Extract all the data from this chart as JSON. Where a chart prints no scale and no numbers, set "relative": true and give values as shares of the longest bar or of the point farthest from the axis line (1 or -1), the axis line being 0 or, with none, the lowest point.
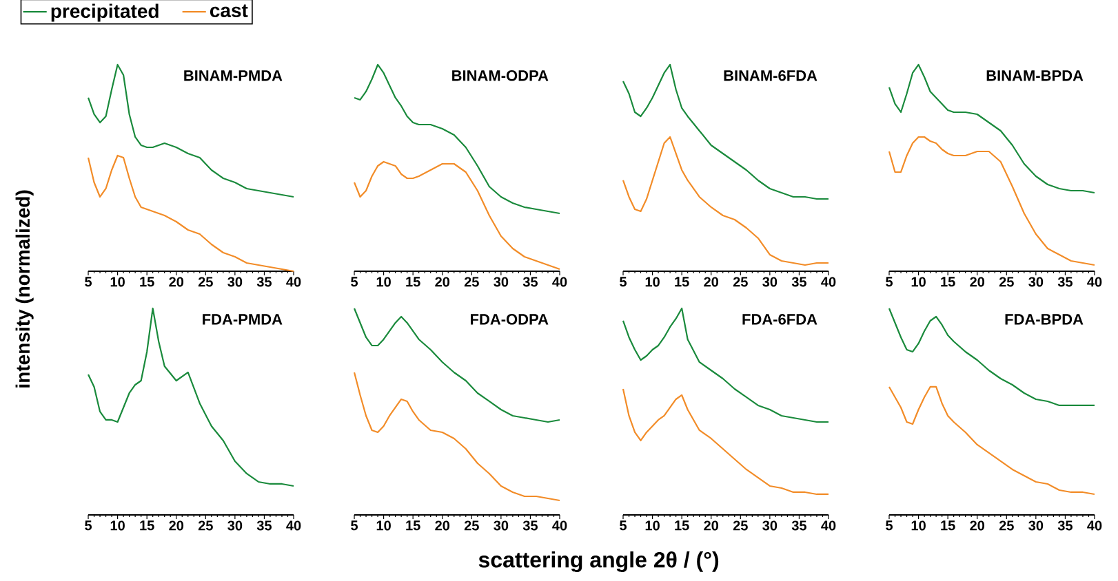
{
  "chart_data": [
    {
      "type": "line",
      "title": "BINAM-PMDA",
      "relative": true,
      "xlim": [
        5,
        40
      ],
      "xticks": [
        5,
        10,
        15,
        20,
        25,
        30,
        35,
        40
      ],
      "tick_labels": "x",
      "legend": "top left",
      "ylabel": "intensity (normalized)",
      "x": [
        5,
        6,
        7,
        8,
        9,
        10,
        11,
        12,
        13,
        14,
        15,
        16,
        18,
        20,
        22,
        24,
        26,
        28,
        30,
        32,
        34,
        36,
        38,
        40
      ],
      "series": [
        {
          "name": "precipitated",
          "color": "#1a8a3c",
          "values": [
            0.84,
            0.76,
            0.72,
            0.75,
            0.88,
            1.0,
            0.95,
            0.76,
            0.65,
            0.61,
            0.6,
            0.6,
            0.62,
            0.6,
            0.57,
            0.55,
            0.49,
            0.45,
            0.43,
            0.4,
            0.39,
            0.38,
            0.37,
            0.36
          ]
        },
        {
          "name": "cast",
          "color": "#f28c28",
          "values": [
            0.55,
            0.43,
            0.36,
            0.4,
            0.49,
            0.56,
            0.55,
            0.45,
            0.36,
            0.31,
            0.3,
            0.29,
            0.27,
            0.24,
            0.2,
            0.18,
            0.13,
            0.09,
            0.07,
            0.04,
            0.03,
            0.02,
            0.01,
            0.0
          ]
        }
      ]
    },
    {
      "type": "line",
      "title": "BINAM-ODPA",
      "relative": true,
      "xlim": [
        5,
        40
      ],
      "xticks": [
        5,
        10,
        15,
        20,
        25,
        30,
        35,
        40
      ],
      "tick_labels": "x",
      "x": [
        5,
        6,
        7,
        8,
        9,
        10,
        11,
        12,
        13,
        14,
        15,
        16,
        18,
        20,
        22,
        24,
        26,
        28,
        30,
        32,
        34,
        36,
        38,
        40
      ],
      "series": [
        {
          "color": "#1a8a3c",
          "values": [
            0.84,
            0.83,
            0.87,
            0.93,
            1.0,
            0.96,
            0.9,
            0.84,
            0.8,
            0.75,
            0.72,
            0.71,
            0.71,
            0.69,
            0.66,
            0.6,
            0.51,
            0.41,
            0.36,
            0.33,
            0.31,
            0.3,
            0.29,
            0.28
          ]
        },
        {
          "color": "#f28c28",
          "values": [
            0.43,
            0.36,
            0.39,
            0.46,
            0.51,
            0.53,
            0.52,
            0.51,
            0.47,
            0.45,
            0.45,
            0.46,
            0.49,
            0.52,
            0.52,
            0.48,
            0.39,
            0.27,
            0.17,
            0.11,
            0.07,
            0.05,
            0.03,
            0.01
          ]
        }
      ]
    },
    {
      "type": "line",
      "title": "BINAM-6FDA",
      "relative": true,
      "xlim": [
        5,
        40
      ],
      "xticks": [
        5,
        10,
        15,
        20,
        25,
        30,
        35,
        40
      ],
      "tick_labels": "x",
      "x": [
        5,
        6,
        7,
        8,
        9,
        10,
        11,
        12,
        13,
        14,
        15,
        16,
        18,
        20,
        22,
        24,
        26,
        28,
        30,
        32,
        34,
        36,
        38,
        40
      ],
      "series": [
        {
          "color": "#1a8a3c",
          "values": [
            0.92,
            0.86,
            0.77,
            0.75,
            0.79,
            0.84,
            0.9,
            0.96,
            1.0,
            0.88,
            0.79,
            0.75,
            0.68,
            0.61,
            0.57,
            0.53,
            0.49,
            0.44,
            0.4,
            0.38,
            0.36,
            0.36,
            0.35,
            0.35
          ]
        },
        {
          "color": "#f28c28",
          "values": [
            0.44,
            0.36,
            0.3,
            0.29,
            0.35,
            0.44,
            0.53,
            0.62,
            0.65,
            0.57,
            0.49,
            0.44,
            0.36,
            0.31,
            0.27,
            0.25,
            0.21,
            0.16,
            0.08,
            0.05,
            0.04,
            0.03,
            0.04,
            0.04
          ]
        }
      ]
    },
    {
      "type": "line",
      "title": "BINAM-BPDA",
      "relative": true,
      "xlim": [
        5,
        40
      ],
      "xticks": [
        5,
        10,
        15,
        20,
        25,
        30,
        35,
        40
      ],
      "tick_labels": "x",
      "x": [
        5,
        6,
        7,
        8,
        9,
        10,
        11,
        12,
        13,
        14,
        15,
        16,
        18,
        20,
        22,
        24,
        26,
        28,
        30,
        32,
        34,
        36,
        38,
        40
      ],
      "series": [
        {
          "color": "#1a8a3c",
          "values": [
            0.89,
            0.81,
            0.77,
            0.86,
            0.96,
            1.0,
            0.94,
            0.87,
            0.84,
            0.81,
            0.78,
            0.77,
            0.77,
            0.76,
            0.72,
            0.68,
            0.61,
            0.52,
            0.46,
            0.42,
            0.4,
            0.39,
            0.39,
            0.38
          ]
        },
        {
          "color": "#f28c28",
          "values": [
            0.58,
            0.48,
            0.48,
            0.56,
            0.62,
            0.65,
            0.65,
            0.63,
            0.62,
            0.59,
            0.57,
            0.56,
            0.56,
            0.58,
            0.58,
            0.53,
            0.41,
            0.28,
            0.18,
            0.11,
            0.08,
            0.05,
            0.04,
            0.03
          ]
        }
      ]
    },
    {
      "type": "line",
      "title": "FDA-PMDA",
      "relative": true,
      "xlim": [
        5,
        40
      ],
      "xticks": [
        5,
        10,
        15,
        20,
        25,
        30,
        35,
        40
      ],
      "tick_labels": "x",
      "x": [
        5,
        6,
        7,
        8,
        9,
        10,
        11,
        12,
        13,
        14,
        15,
        16,
        17,
        18,
        20,
        22,
        24,
        26,
        28,
        30,
        32,
        34,
        36,
        38,
        40
      ],
      "series": [
        {
          "color": "#1a8a3c",
          "values": [
            0.68,
            0.62,
            0.5,
            0.46,
            0.46,
            0.45,
            0.52,
            0.59,
            0.63,
            0.65,
            0.79,
            1.0,
            0.84,
            0.72,
            0.65,
            0.69,
            0.54,
            0.43,
            0.36,
            0.26,
            0.2,
            0.16,
            0.15,
            0.15,
            0.14
          ]
        }
      ]
    },
    {
      "type": "line",
      "title": "FDA-ODPA",
      "relative": true,
      "xlim": [
        5,
        40
      ],
      "xticks": [
        5,
        10,
        15,
        20,
        25,
        30,
        35,
        40
      ],
      "tick_labels": "x",
      "xlabel": "scattering angle 2θ / (°)",
      "x": [
        5,
        6,
        7,
        8,
        9,
        10,
        11,
        12,
        13,
        14,
        15,
        16,
        18,
        20,
        22,
        24,
        26,
        28,
        30,
        32,
        34,
        36,
        38,
        40
      ],
      "series": [
        {
          "color": "#1a8a3c",
          "values": [
            1.0,
            0.93,
            0.86,
            0.82,
            0.82,
            0.85,
            0.89,
            0.93,
            0.96,
            0.93,
            0.89,
            0.85,
            0.8,
            0.74,
            0.69,
            0.65,
            0.59,
            0.55,
            0.51,
            0.48,
            0.47,
            0.46,
            0.45,
            0.46
          ]
        },
        {
          "color": "#f28c28",
          "values": [
            0.69,
            0.58,
            0.48,
            0.41,
            0.4,
            0.43,
            0.48,
            0.52,
            0.56,
            0.55,
            0.5,
            0.46,
            0.41,
            0.4,
            0.37,
            0.32,
            0.25,
            0.2,
            0.14,
            0.11,
            0.09,
            0.09,
            0.08,
            0.07
          ]
        }
      ]
    },
    {
      "type": "line",
      "title": "FDA-6FDA",
      "relative": true,
      "xlim": [
        5,
        40
      ],
      "xticks": [
        5,
        10,
        15,
        20,
        25,
        30,
        35,
        40
      ],
      "tick_labels": "x",
      "x": [
        5,
        6,
        7,
        8,
        9,
        10,
        11,
        12,
        13,
        14,
        15,
        16,
        18,
        20,
        22,
        24,
        26,
        28,
        30,
        32,
        34,
        36,
        38,
        40
      ],
      "series": [
        {
          "color": "#1a8a3c",
          "values": [
            0.94,
            0.86,
            0.8,
            0.75,
            0.77,
            0.8,
            0.82,
            0.86,
            0.91,
            0.95,
            1.0,
            0.85,
            0.74,
            0.7,
            0.66,
            0.61,
            0.57,
            0.53,
            0.51,
            0.48,
            0.47,
            0.46,
            0.45,
            0.45
          ]
        },
        {
          "color": "#f28c28",
          "values": [
            0.61,
            0.48,
            0.4,
            0.36,
            0.4,
            0.43,
            0.46,
            0.48,
            0.52,
            0.56,
            0.58,
            0.51,
            0.41,
            0.37,
            0.32,
            0.27,
            0.22,
            0.18,
            0.14,
            0.13,
            0.11,
            0.11,
            0.1,
            0.1
          ]
        }
      ]
    },
    {
      "type": "line",
      "title": "FDA-BPDA",
      "relative": true,
      "xlim": [
        5,
        40
      ],
      "xticks": [
        5,
        10,
        15,
        20,
        25,
        30,
        35,
        40
      ],
      "tick_labels": "x",
      "x": [
        5,
        6,
        7,
        8,
        9,
        10,
        11,
        12,
        13,
        14,
        15,
        16,
        18,
        20,
        22,
        24,
        26,
        28,
        30,
        32,
        34,
        36,
        38,
        40
      ],
      "series": [
        {
          "color": "#1a8a3c",
          "values": [
            1.0,
            0.93,
            0.86,
            0.8,
            0.79,
            0.83,
            0.89,
            0.94,
            0.96,
            0.92,
            0.87,
            0.84,
            0.79,
            0.75,
            0.7,
            0.66,
            0.63,
            0.59,
            0.56,
            0.55,
            0.53,
            0.53,
            0.53,
            0.53
          ]
        },
        {
          "color": "#f28c28",
          "values": [
            0.62,
            0.57,
            0.52,
            0.45,
            0.44,
            0.51,
            0.57,
            0.62,
            0.62,
            0.54,
            0.48,
            0.45,
            0.4,
            0.34,
            0.3,
            0.26,
            0.22,
            0.19,
            0.16,
            0.15,
            0.12,
            0.11,
            0.11,
            0.1
          ]
        }
      ]
    }
  ]
}
